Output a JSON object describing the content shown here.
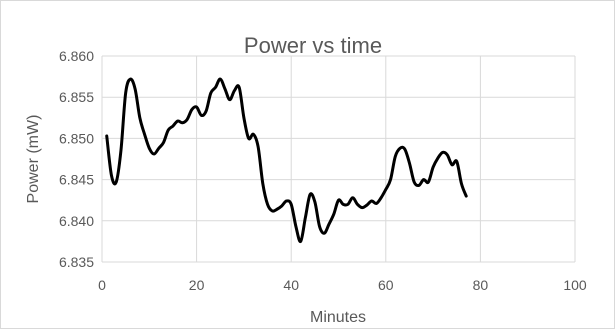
{
  "chart_data": {
    "type": "line",
    "title": "Power vs time",
    "xlabel": "Minutes",
    "ylabel": "Power (mW)",
    "xlim": [
      0,
      100
    ],
    "ylim": [
      6.835,
      6.86
    ],
    "x_ticks": [
      "0",
      "20",
      "40",
      "60",
      "80",
      "100"
    ],
    "y_ticks": [
      "6.835",
      "6.840",
      "6.845",
      "6.850",
      "6.855",
      "6.860"
    ],
    "grid": true,
    "legend": "none",
    "series": [
      {
        "color": "#000000",
        "x": [
          1,
          2,
          3,
          4,
          5,
          6,
          7,
          8,
          9,
          10,
          11,
          12,
          13,
          14,
          15,
          16,
          17,
          18,
          19,
          20,
          21,
          22,
          23,
          24,
          25,
          26,
          27,
          28,
          29,
          30,
          31,
          32,
          33,
          34,
          35,
          36,
          37,
          38,
          39,
          40,
          41,
          42,
          43,
          44,
          45,
          46,
          47,
          48,
          49,
          50,
          51,
          52,
          53,
          54,
          55,
          56,
          57,
          58,
          59,
          60,
          61,
          62,
          63,
          64,
          65,
          66,
          67,
          68,
          69,
          70,
          71,
          72,
          73,
          74,
          75,
          76,
          77
        ],
        "values": [
          6.8503,
          6.8455,
          6.8447,
          6.8485,
          6.8555,
          6.8572,
          6.856,
          6.8525,
          6.8505,
          6.8488,
          6.8481,
          6.8488,
          6.8495,
          6.851,
          6.8515,
          6.8521,
          6.8519,
          6.8523,
          6.8535,
          6.8538,
          6.8528,
          6.8533,
          6.8555,
          6.8562,
          6.8572,
          6.856,
          6.8547,
          6.8558,
          6.8562,
          6.8525,
          6.85,
          6.8505,
          6.849,
          6.8445,
          6.842,
          6.8412,
          6.8414,
          6.8418,
          6.8424,
          6.842,
          6.8393,
          6.8375,
          6.8404,
          6.8432,
          6.8423,
          6.8393,
          6.8385,
          6.8396,
          6.8408,
          6.8425,
          6.842,
          6.842,
          6.8428,
          6.842,
          6.8416,
          6.8419,
          6.8424,
          6.8421,
          6.8428,
          6.8438,
          6.845,
          6.8478,
          6.8488,
          6.8487,
          6.847,
          6.8447,
          6.8443,
          6.845,
          6.8447,
          6.8465,
          6.8476,
          6.8483,
          6.848,
          6.8468,
          6.8472,
          6.8445,
          6.843
        ]
      }
    ]
  }
}
